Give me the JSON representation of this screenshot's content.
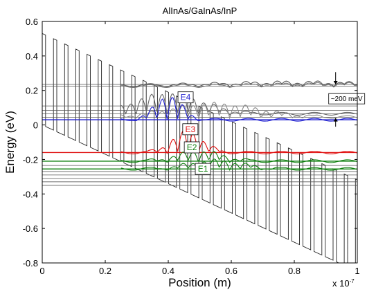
{
  "chart_data": {
    "type": "line",
    "title": "AlInAs/GaInAs/InP",
    "xlabel": "Position  (m)",
    "ylabel": "Energy  (eV)",
    "x_exponent_label": "x 10",
    "x_exponent_power": "-7",
    "xlim": [
      0,
      1
    ],
    "ylim": [
      -0.8,
      0.6
    ],
    "xticks": [
      "0",
      "0.2",
      "0.4",
      "0.6",
      "0.8",
      "1"
    ],
    "yticks": [
      "-0.8",
      "-0.6",
      "-0.4",
      "-0.2",
      "0",
      "0.2",
      "0.4",
      "0.6"
    ],
    "grid": false,
    "conduction_band": {
      "barrier_height": 0.53,
      "start_value": 0.0,
      "end_value": -0.85,
      "period": 0.0355,
      "well_fraction": 0.7
    },
    "subband_levels": [
      {
        "name": "E4",
        "energy": 0.03,
        "x_start": 0.0,
        "color": "#1f1fd0"
      },
      {
        "name": "E3",
        "energy": -0.16,
        "x_start": 0.0,
        "color": "#e01010"
      },
      {
        "name": "E2",
        "energy": -0.21,
        "x_start": 0.0,
        "color": "#108010"
      },
      {
        "name": "E1",
        "energy": -0.255,
        "x_start": 0.0,
        "color": "#108010"
      }
    ],
    "other_levels": [
      0.235,
      0.225,
      0.11,
      0.085,
      0.065,
      0.045,
      -0.235,
      -0.27,
      -0.29,
      -0.31,
      -0.33,
      -0.35
    ],
    "level_labels": [
      {
        "text": "E4",
        "x": 0.455,
        "y": 0.16,
        "color": "#1f1fd0"
      },
      {
        "text": "E3",
        "x": 0.47,
        "y": -0.025,
        "color": "#e01010"
      },
      {
        "text": "E2",
        "x": 0.475,
        "y": -0.13,
        "color": "#108010"
      },
      {
        "text": "E1",
        "x": 0.51,
        "y": -0.255,
        "color": "#108010"
      }
    ],
    "annotation": {
      "text": "~200 meV",
      "x": 0.94,
      "y": 0.15,
      "arrow_top": 0.29,
      "arrow_bottom": 0.03
    }
  }
}
